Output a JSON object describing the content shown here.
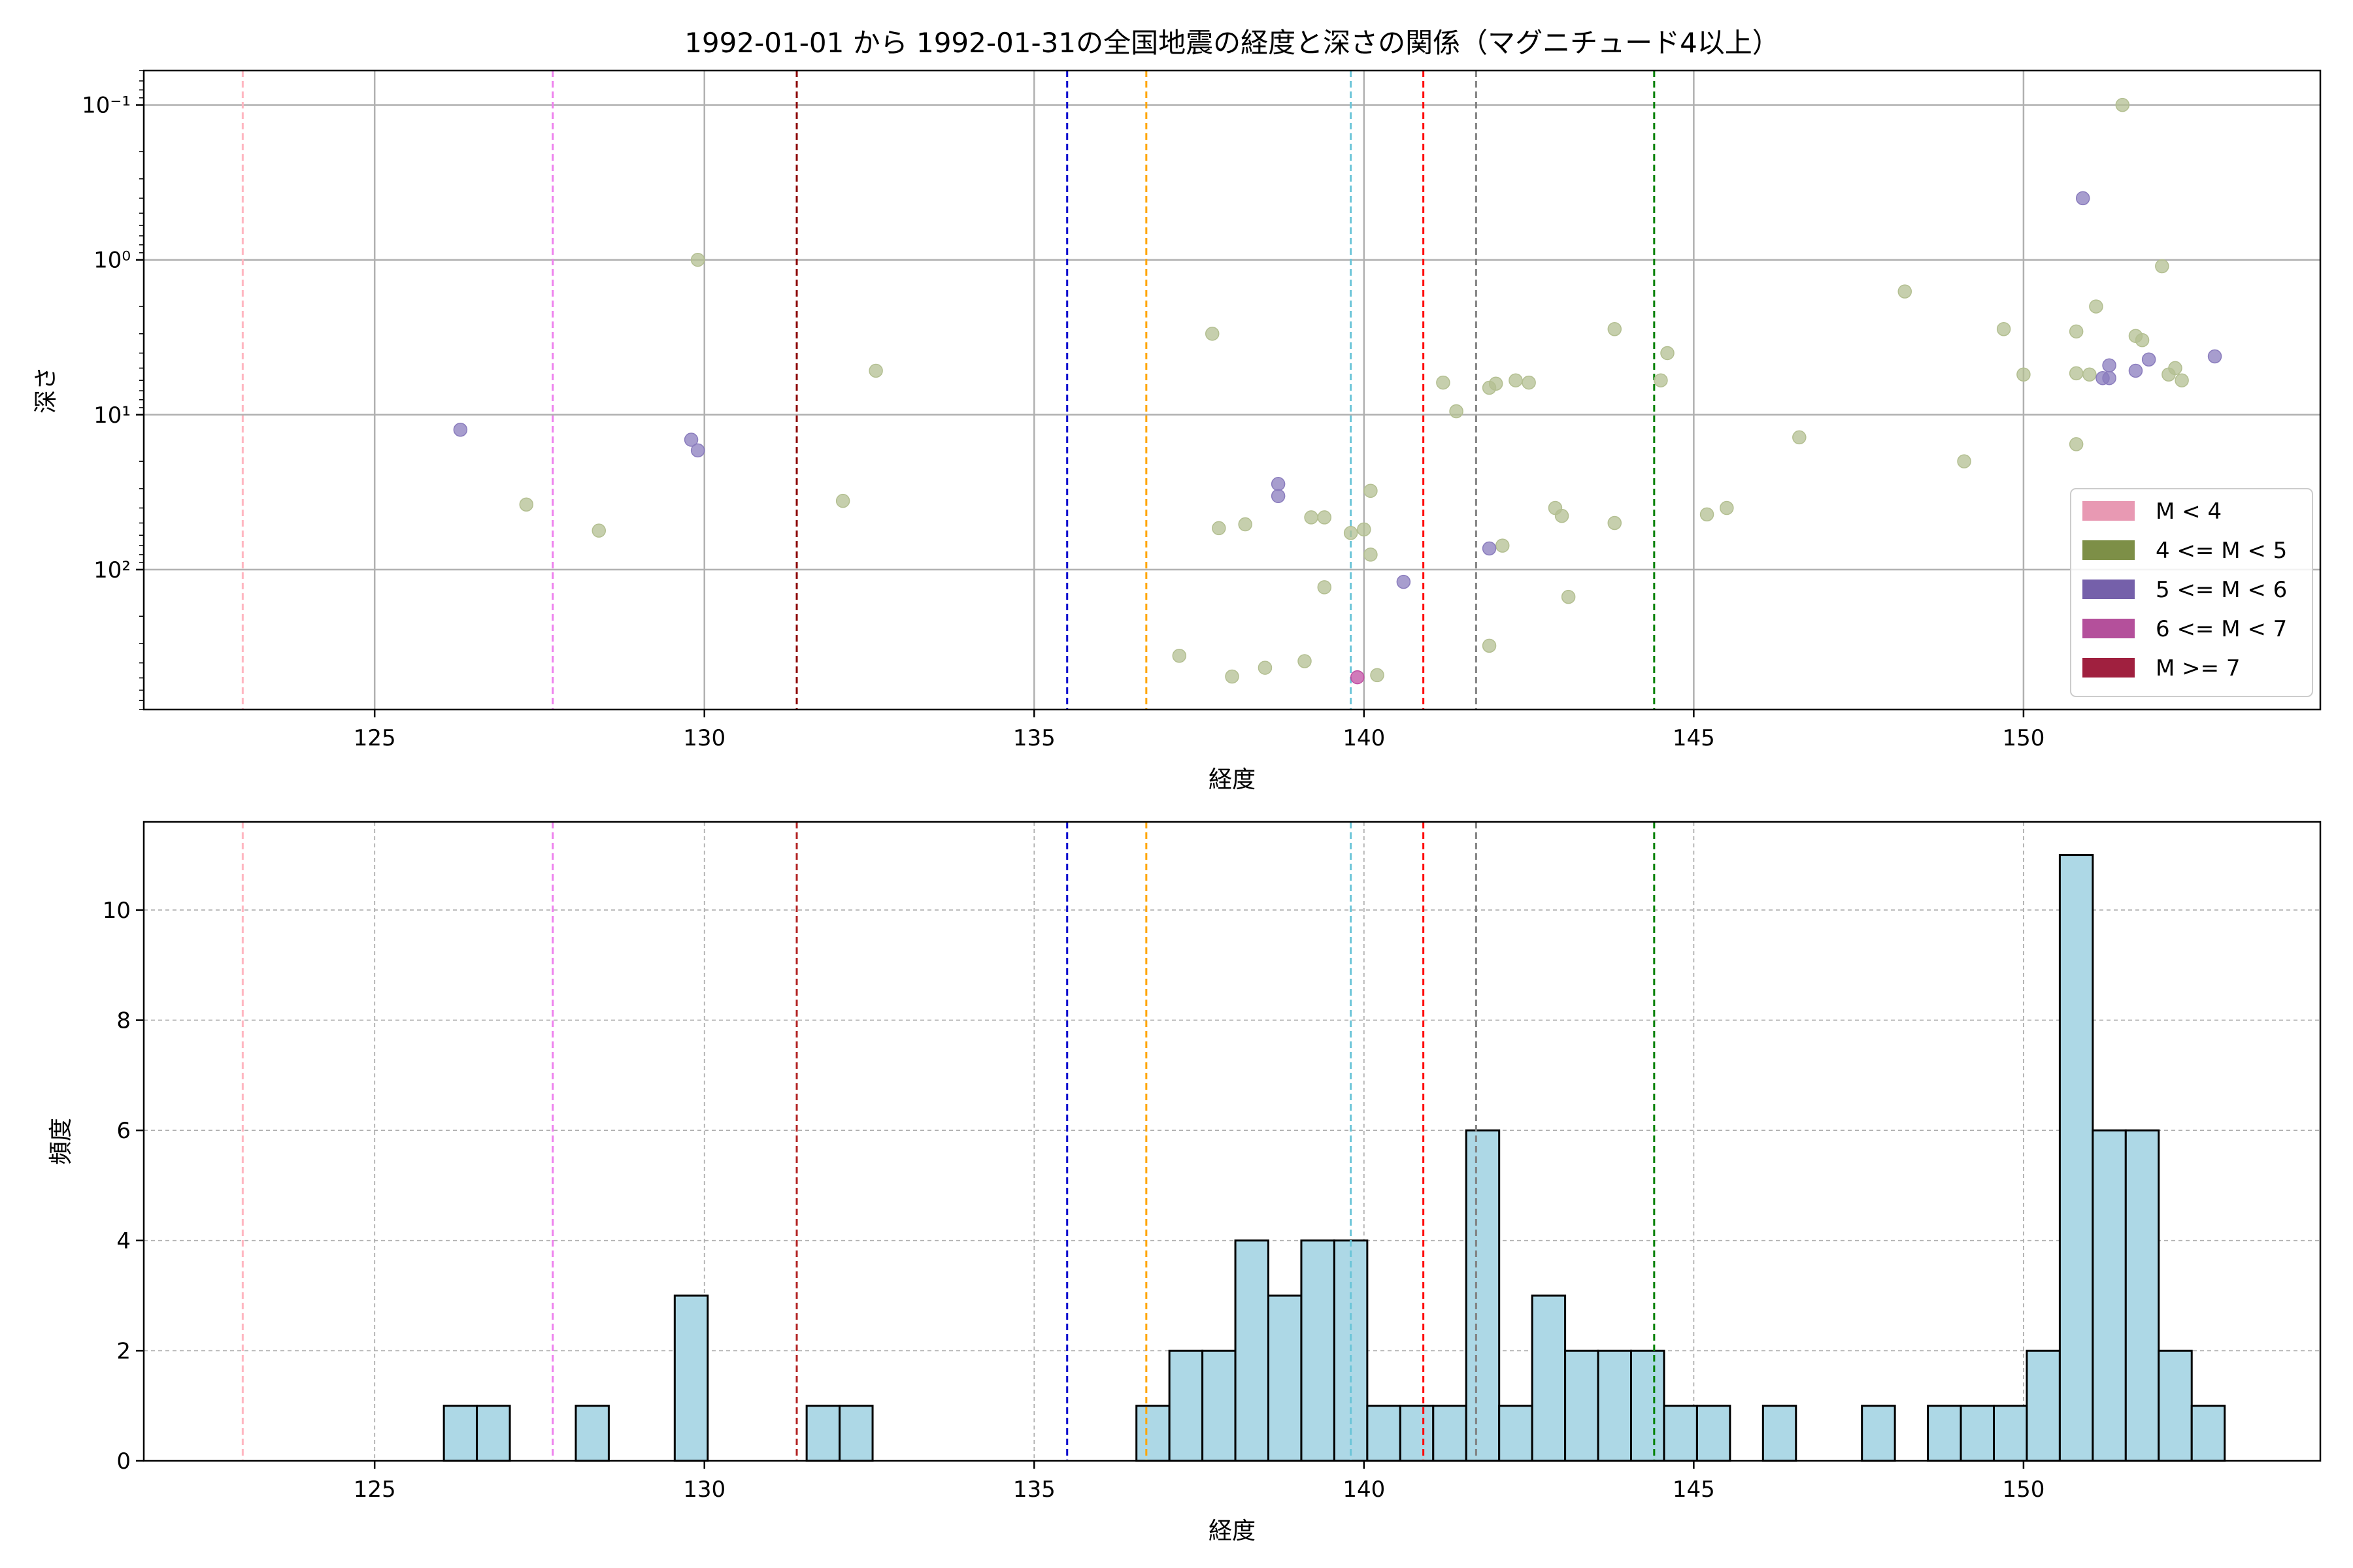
{
  "chart_data": [
    {
      "type": "scatter",
      "title": "1992-01-01 から 1992-01-31の全国地震の経度と深さの関係（マグニチュード4以上）",
      "xlabel": "経度",
      "ylabel": "深さ",
      "xlim": [
        121.5,
        154.5
      ],
      "ylim": [
        0.06,
        800
      ],
      "yscale": "log",
      "y_inverted": true,
      "xticks": [
        "125",
        "130",
        "135",
        "140",
        "145",
        "150"
      ],
      "xtick_values": [
        125,
        130,
        135,
        140,
        145,
        150
      ],
      "yticks": [
        "10⁻¹",
        "10⁰",
        "10¹",
        "10²"
      ],
      "ytick_values": [
        0.1,
        1,
        10,
        100
      ],
      "grid": true,
      "legend_position": "lower-right",
      "legend": [
        {
          "label": "M < 4",
          "color": "#e899b3"
        },
        {
          "label": "4 <= M < 5",
          "color": "#7d8f47"
        },
        {
          "label": "5 <= M < 6",
          "color": "#7560aa"
        },
        {
          "label": "6 <= M < 7",
          "color": "#b4509b"
        },
        {
          "label": "M >= 7",
          "color": "#a0203f"
        }
      ],
      "series": [
        {
          "name": "4 <= M < 5",
          "color": "#b3bf91",
          "points": [
            [
              151.5,
              0.1
            ],
            [
              129.9,
              1.0
            ],
            [
              148.2,
              1.6
            ],
            [
              152.1,
              1.1
            ],
            [
              151.1,
              2.0
            ],
            [
              137.7,
              3.0
            ],
            [
              143.8,
              2.8
            ],
            [
              149.7,
              2.8
            ],
            [
              150.8,
              2.9
            ],
            [
              151.7,
              3.1
            ],
            [
              151.8,
              3.3
            ],
            [
              144.6,
              4.0
            ],
            [
              132.6,
              5.2
            ],
            [
              150.0,
              5.5
            ],
            [
              150.8,
              5.4
            ],
            [
              151.0,
              5.5
            ],
            [
              152.3,
              5.0
            ],
            [
              152.2,
              5.5
            ],
            [
              152.4,
              6.0
            ],
            [
              141.2,
              6.2
            ],
            [
              142.0,
              6.3
            ],
            [
              142.3,
              6.0
            ],
            [
              142.5,
              6.2
            ],
            [
              141.9,
              6.7
            ],
            [
              144.5,
              6.0
            ],
            [
              141.4,
              9.5
            ],
            [
              146.6,
              14.0
            ],
            [
              149.1,
              20.0
            ],
            [
              150.8,
              15.5
            ],
            [
              132.1,
              36.0
            ],
            [
              127.3,
              38.0
            ],
            [
              142.9,
              40.0
            ],
            [
              143.0,
              45.0
            ],
            [
              143.8,
              50.0
            ],
            [
              128.4,
              56.0
            ],
            [
              139.2,
              46.0
            ],
            [
              139.4,
              46.0
            ],
            [
              139.8,
              58.0
            ],
            [
              140.0,
              55.0
            ],
            [
              137.8,
              54.0
            ],
            [
              138.2,
              51.0
            ],
            [
              140.1,
              31.0
            ],
            [
              140.1,
              80.0
            ],
            [
              145.2,
              44.0
            ],
            [
              145.5,
              40.0
            ],
            [
              142.1,
              70.0
            ],
            [
              139.4,
              130.0
            ],
            [
              143.1,
              150.0
            ],
            [
              137.2,
              360.0
            ],
            [
              138.0,
              490.0
            ],
            [
              138.5,
              430.0
            ],
            [
              139.1,
              390.0
            ],
            [
              140.2,
              480.0
            ],
            [
              141.9,
              310.0
            ]
          ]
        },
        {
          "name": "5 <= M < 6",
          "color": "#8a7cbd",
          "points": [
            [
              150.9,
              0.4
            ],
            [
              126.3,
              12.5
            ],
            [
              129.8,
              14.5
            ],
            [
              129.9,
              17.0
            ],
            [
              138.7,
              28.0
            ],
            [
              138.7,
              33.5
            ],
            [
              151.3,
              4.8
            ],
            [
              151.2,
              5.8
            ],
            [
              151.3,
              5.8
            ],
            [
              151.9,
              4.4
            ],
            [
              151.7,
              5.2
            ],
            [
              152.9,
              4.2
            ],
            [
              140.6,
              120.0
            ],
            [
              141.9,
              73.0
            ]
          ]
        },
        {
          "name": "6 <= M < 7",
          "color": "#c04fa3",
          "points": [
            [
              139.9,
              495.0
            ]
          ]
        }
      ],
      "vlines": [
        {
          "x": 123.0,
          "color": "#ffb6c1"
        },
        {
          "x": 127.7,
          "color": "#ee82ee"
        },
        {
          "x": 131.4,
          "color": "#8b0000"
        },
        {
          "x": 135.5,
          "color": "#0000cd"
        },
        {
          "x": 136.7,
          "color": "#ffa500"
        },
        {
          "x": 139.8,
          "color": "#6cc5d8"
        },
        {
          "x": 140.9,
          "color": "#ff0000"
        },
        {
          "x": 141.7,
          "color": "#808080"
        },
        {
          "x": 144.4,
          "color": "#008000"
        }
      ]
    },
    {
      "type": "bar",
      "title": "",
      "xlabel": "経度",
      "ylabel": "頻度",
      "xlim": [
        121.5,
        154.5
      ],
      "ylim": [
        0,
        11.6
      ],
      "xticks": [
        "125",
        "130",
        "135",
        "140",
        "145",
        "150"
      ],
      "xtick_values": [
        125,
        130,
        135,
        140,
        145,
        150
      ],
      "yticks": [
        "0",
        "2",
        "4",
        "6",
        "8",
        "10"
      ],
      "ytick_values": [
        0,
        2,
        4,
        6,
        8,
        10
      ],
      "grid": true,
      "bar_color": "#add8e6",
      "bin_width": 0.5,
      "bins": [
        [
          126.3,
          1
        ],
        [
          126.8,
          1
        ],
        [
          128.3,
          1
        ],
        [
          129.8,
          3
        ],
        [
          131.8,
          1
        ],
        [
          132.3,
          1
        ],
        [
          136.8,
          1
        ],
        [
          137.3,
          2
        ],
        [
          137.8,
          2
        ],
        [
          138.3,
          4
        ],
        [
          138.8,
          3
        ],
        [
          139.3,
          4
        ],
        [
          139.8,
          4
        ],
        [
          140.3,
          1
        ],
        [
          140.8,
          1
        ],
        [
          141.3,
          1
        ],
        [
          141.8,
          6
        ],
        [
          142.3,
          1
        ],
        [
          142.8,
          3
        ],
        [
          143.3,
          2
        ],
        [
          143.8,
          2
        ],
        [
          144.3,
          2
        ],
        [
          144.8,
          1
        ],
        [
          145.3,
          1
        ],
        [
          146.3,
          1
        ],
        [
          147.8,
          1
        ],
        [
          148.8,
          1
        ],
        [
          149.3,
          1
        ],
        [
          149.8,
          1
        ],
        [
          150.3,
          2
        ],
        [
          150.8,
          11
        ],
        [
          151.3,
          6
        ],
        [
          151.8,
          6
        ],
        [
          152.3,
          2
        ],
        [
          152.8,
          1
        ]
      ],
      "vlines": [
        {
          "x": 123.0,
          "color": "#ffb6c1"
        },
        {
          "x": 127.7,
          "color": "#ee82ee"
        },
        {
          "x": 131.4,
          "color": "#b22222"
        },
        {
          "x": 135.5,
          "color": "#0000cd"
        },
        {
          "x": 136.7,
          "color": "#ffa500"
        },
        {
          "x": 139.8,
          "color": "#6cc5d8"
        },
        {
          "x": 140.9,
          "color": "#ff0000"
        },
        {
          "x": 141.7,
          "color": "#808080"
        },
        {
          "x": 144.4,
          "color": "#008000"
        }
      ]
    }
  ]
}
